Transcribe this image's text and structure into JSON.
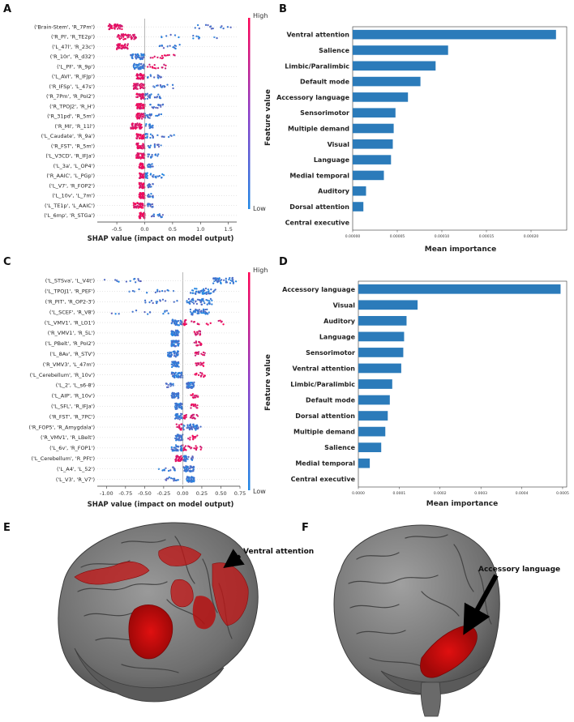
{
  "panels": {
    "A": "A",
    "B": "B",
    "C": "C",
    "D": "D",
    "E": "E",
    "F": "F"
  },
  "colors": {
    "high": "#ff0052",
    "low": "#1e88e5",
    "bar": "#2b7bba"
  },
  "chart_data": [
    {
      "id": "A",
      "type": "scatter",
      "subtype": "shap-beeswarm",
      "xlabel": "SHAP value (impact on model output)",
      "colorbar_label": "Feature value",
      "colorbar_high": "High",
      "colorbar_low": "Low",
      "xlim": [
        -0.85,
        1.65
      ],
      "xticks": [
        -0.5,
        0.0,
        0.5,
        1.0,
        1.5
      ],
      "xtick_labels": [
        "-0.5",
        "0.0",
        "0.5",
        "1.0",
        "1.5"
      ],
      "features": [
        {
          "name": "('Brain-Stem', 'R_7Pm')",
          "core": [
            -0.65,
            -0.4
          ],
          "spread": [
            0.9,
            1.55
          ],
          "highSide": -1
        },
        {
          "name": "('R_PI', 'R_TE2p')",
          "core": [
            -0.5,
            -0.15
          ],
          "spread": [
            0.3,
            1.3
          ],
          "highSide": -1
        },
        {
          "name": "('L_47l', 'R_23c')",
          "core": [
            -0.5,
            -0.3
          ],
          "spread": [
            0.2,
            0.65
          ],
          "highSide": -1
        },
        {
          "name": "('R_10r', 'R_d32')",
          "core": [
            -0.25,
            0.0
          ],
          "spread": [
            0.1,
            0.55
          ],
          "highSide": 1
        },
        {
          "name": "('L_PF', 'R_9p')",
          "core": [
            -0.2,
            0.0
          ],
          "spread": [
            0.05,
            0.4
          ],
          "highSide": 1
        },
        {
          "name": "('L_AVI', 'R_IFJp')",
          "core": [
            -0.15,
            0.0
          ],
          "spread": [
            0.05,
            0.3
          ],
          "highSide": -1
        },
        {
          "name": "('R_IFSp', 'L_47s')",
          "core": [
            -0.2,
            0.0
          ],
          "spread": [
            0.1,
            0.6
          ],
          "highSide": -1
        },
        {
          "name": "('R_7Pm', 'R_PoI2')",
          "core": [
            -0.15,
            0.05
          ],
          "spread": [
            0.05,
            0.3
          ],
          "highSide": -1
        },
        {
          "name": "('R_TPOJ2', 'R_H')",
          "core": [
            -0.15,
            0.0
          ],
          "spread": [
            0.05,
            0.35
          ],
          "highSide": -1
        },
        {
          "name": "('R_31pd', 'R_5m')",
          "core": [
            -0.15,
            0.05
          ],
          "spread": [
            0.05,
            0.3
          ],
          "highSide": -1
        },
        {
          "name": "('R_MI', 'R_11l')",
          "core": [
            -0.25,
            -0.05
          ],
          "spread": [
            0.0,
            0.15
          ],
          "highSide": -1
        },
        {
          "name": "('L_Caudate', 'R_9a')",
          "core": [
            -0.15,
            0.05
          ],
          "spread": [
            0.1,
            0.55
          ],
          "highSide": -1
        },
        {
          "name": "('R_FST', 'R_5m')",
          "core": [
            -0.15,
            0.0
          ],
          "spread": [
            0.05,
            0.3
          ],
          "highSide": -1
        },
        {
          "name": "('L_V3CD', 'R_IFJa')",
          "core": [
            -0.15,
            0.0
          ],
          "spread": [
            0.05,
            0.25
          ],
          "highSide": -1
        },
        {
          "name": "('L_3a', 'L_OP4')",
          "core": [
            -0.1,
            0.0
          ],
          "spread": [
            0.05,
            0.15
          ],
          "highSide": -1
        },
        {
          "name": "('R_AAIC', 'L_PGp')",
          "core": [
            -0.1,
            0.05
          ],
          "spread": [
            0.1,
            0.35
          ],
          "highSide": -1
        },
        {
          "name": "('L_V7', 'R_FOP2')",
          "core": [
            -0.1,
            0.0
          ],
          "spread": [
            0.05,
            0.15
          ],
          "highSide": -1
        },
        {
          "name": "('L_10v', 'L_7m')",
          "core": [
            -0.1,
            0.0
          ],
          "spread": [
            0.05,
            0.15
          ],
          "highSide": -1
        },
        {
          "name": "('L_TE1p', 'L_AAIC')",
          "core": [
            -0.2,
            0.0
          ],
          "spread": [
            0.05,
            0.15
          ],
          "highSide": -1
        },
        {
          "name": "('L_6mp', 'R_STGa')",
          "core": [
            -0.1,
            0.0
          ],
          "spread": [
            0.1,
            0.35
          ],
          "highSide": -1
        }
      ]
    },
    {
      "id": "B",
      "type": "bar",
      "orientation": "horizontal",
      "xlabel": "Mean importance",
      "xlim": [
        0,
        0.00024
      ],
      "xticks": [
        0,
        5e-05,
        0.0001,
        0.00015,
        0.0002
      ],
      "xtick_labels": [
        "0.00000",
        "0.00005",
        "0.00010",
        "0.00015",
        "0.00020"
      ],
      "categories": [
        "Ventral attention",
        "Salience",
        "Limbic/Paralimbic",
        "Default mode",
        "Accessory language",
        "Sensorimotor",
        "Multiple demand",
        "Visual",
        "Language",
        "Medial temporal",
        "Auditory",
        "Dorsal attention",
        "Central executive"
      ],
      "values": [
        0.000228,
        0.000107,
        9.3e-05,
        7.6e-05,
        6.2e-05,
        4.8e-05,
        4.6e-05,
        4.5e-05,
        4.3e-05,
        3.5e-05,
        1.5e-05,
        1.2e-05,
        0.0
      ]
    },
    {
      "id": "C",
      "type": "scatter",
      "subtype": "shap-beeswarm",
      "xlabel": "SHAP value (impact on model output)",
      "colorbar_label": "Feature value",
      "colorbar_high": "High",
      "colorbar_low": "Low",
      "xlim": [
        -1.12,
        0.75
      ],
      "xticks": [
        -1.0,
        -0.75,
        -0.5,
        -0.25,
        0.0,
        0.25,
        0.5,
        0.75
      ],
      "xtick_labels": [
        "-1.00",
        "-0.75",
        "-0.50",
        "-0.25",
        "0.00",
        "0.25",
        "0.50",
        "0.75"
      ],
      "features": [
        {
          "name": "('L_STSva', 'L_V4t')",
          "core": [
            0.4,
            0.7
          ],
          "spread": [
            -1.05,
            -0.5
          ],
          "highSide": -1
        },
        {
          "name": "('L_TPOJ1', 'R_PEF')",
          "core": [
            0.1,
            0.45
          ],
          "spread": [
            -0.7,
            -0.05
          ],
          "highSide": -1
        },
        {
          "name": "('R_PIT', 'R_OP2-3')",
          "core": [
            0.05,
            0.4
          ],
          "spread": [
            -0.5,
            -0.05
          ],
          "highSide": -1
        },
        {
          "name": "('L_SCEF', 'R_V8')",
          "core": [
            0.1,
            0.35
          ],
          "spread": [
            -0.95,
            -0.1
          ],
          "highSide": -1
        },
        {
          "name": "('L_VMV1', 'R_LO1')",
          "core": [
            -0.15,
            0.05
          ],
          "spread": [
            0.1,
            0.55
          ],
          "highSide": 1
        },
        {
          "name": "('R_VMV1', 'R_5L')",
          "core": [
            -0.15,
            -0.05
          ],
          "spread": [
            0.15,
            0.25
          ],
          "highSide": 1
        },
        {
          "name": "('L_PBelt', 'R_PoI2')",
          "core": [
            -0.15,
            -0.05
          ],
          "spread": [
            0.15,
            0.25
          ],
          "highSide": 1
        },
        {
          "name": "('L_8Av', 'R_STV')",
          "core": [
            -0.2,
            -0.05
          ],
          "spread": [
            0.15,
            0.3
          ],
          "highSide": 1
        },
        {
          "name": "('R_VMV3', 'L_47m')",
          "core": [
            -0.15,
            -0.05
          ],
          "spread": [
            0.15,
            0.3
          ],
          "highSide": 1
        },
        {
          "name": "('L_Cerebellum', 'R_10v')",
          "core": [
            -0.15,
            0.0
          ],
          "spread": [
            0.15,
            0.3
          ],
          "highSide": 1
        },
        {
          "name": "('L_2', 'L_s6-8')",
          "core": [
            0.05,
            0.15
          ],
          "spread": [
            -0.25,
            -0.1
          ],
          "highSide": -1
        },
        {
          "name": "('L_AIP', 'R_10v')",
          "core": [
            -0.15,
            -0.05
          ],
          "spread": [
            0.1,
            0.2
          ],
          "highSide": 1
        },
        {
          "name": "('L_SFL', 'R_IFJa')",
          "core": [
            -0.1,
            0.0
          ],
          "spread": [
            0.1,
            0.2
          ],
          "highSide": 1
        },
        {
          "name": "('R_FST', 'R_7PC')",
          "core": [
            -0.1,
            0.05
          ],
          "spread": [
            0.1,
            0.2
          ],
          "highSide": 1
        },
        {
          "name": "('R_FOP5', 'R_Amygdala')",
          "core": [
            -0.1,
            0.2
          ],
          "spread": [
            0.05,
            0.25
          ],
          "highSide": -1
        },
        {
          "name": "('R_VMV1', 'R_LBelt')",
          "core": [
            -0.1,
            0.0
          ],
          "spread": [
            0.05,
            0.2
          ],
          "highSide": 1
        },
        {
          "name": "('L_6v', 'R_FOP1')",
          "core": [
            -0.15,
            0.05
          ],
          "spread": [
            0.05,
            0.25
          ],
          "highSide": 1
        },
        {
          "name": "('L_Cerebellum', 'R_PFt')",
          "core": [
            -0.1,
            0.05
          ],
          "spread": [
            0.0,
            0.15
          ],
          "highSide": -1
        },
        {
          "name": "('L_A4', 'L_52')",
          "core": [
            0.0,
            0.15
          ],
          "spread": [
            -0.35,
            -0.1
          ],
          "highSide": -1
        },
        {
          "name": "('L_V3', 'R_V7')",
          "core": [
            0.05,
            0.15
          ],
          "spread": [
            -0.25,
            -0.05
          ],
          "highSide": -1
        }
      ]
    },
    {
      "id": "D",
      "type": "bar",
      "orientation": "horizontal",
      "xlabel": "Mean importance",
      "xlim": [
        0,
        0.00051
      ],
      "xticks": [
        0,
        0.0001,
        0.0002,
        0.0003,
        0.0004,
        0.0005
      ],
      "xtick_labels": [
        "0.0000",
        "0.0001",
        "0.0002",
        "0.0003",
        "0.0004",
        "0.0005"
      ],
      "categories": [
        "Accessory language",
        "Visual",
        "Auditory",
        "Language",
        "Sensorimotor",
        "Ventral attention",
        "Limbic/Paralimbic",
        "Default mode",
        "Dorsal attention",
        "Multiple demand",
        "Salience",
        "Medial temporal",
        "Central executive"
      ],
      "values": [
        0.000495,
        0.000145,
        0.000118,
        0.000112,
        0.00011,
        0.000105,
        8.3e-05,
        7.7e-05,
        7.2e-05,
        6.6e-05,
        5.6e-05,
        2.8e-05,
        0.0
      ]
    }
  ],
  "brains": {
    "E": {
      "label": "Ventral attention"
    },
    "F": {
      "label": "Accessory language"
    }
  }
}
